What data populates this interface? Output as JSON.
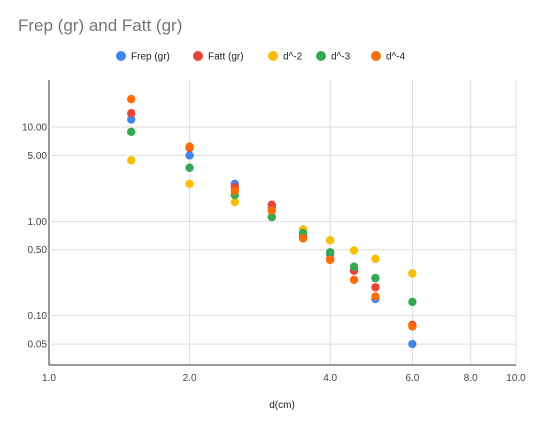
{
  "chart_data": {
    "type": "scatter",
    "title": "Frep (gr) and Fatt (gr)",
    "xlabel": "d(cm)",
    "ylabel": "",
    "x_scale": "log",
    "y_scale": "log",
    "xlim": [
      1.0,
      10.0
    ],
    "ylim": [
      0.03,
      30
    ],
    "x_ticks": [
      1.0,
      2.0,
      4.0,
      6.0,
      8.0,
      10.0
    ],
    "x_tick_labels": [
      "1.0",
      "2.0",
      "4.0",
      "6.0",
      "8.0",
      "10.0"
    ],
    "y_ticks": [
      0.05,
      0.1,
      0.5,
      1.0,
      5.0,
      10.0
    ],
    "y_tick_labels": [
      "0.05",
      "0.10",
      "0.50",
      "1.00",
      "5.00",
      "10.00"
    ],
    "grid": true,
    "legend_position": "top",
    "series": [
      {
        "name": "Frep (gr)",
        "color": "#4285F4",
        "x": [
          1.5,
          2.0,
          2.5,
          3.0,
          3.5,
          4.0,
          4.5,
          5.0,
          6.0
        ],
        "y": [
          12.0,
          5.0,
          2.5,
          1.4,
          0.72,
          0.45,
          0.3,
          0.15,
          0.05
        ]
      },
      {
        "name": "Fatt (gr)",
        "color": "#EA4335",
        "x": [
          1.5,
          2.0,
          2.5,
          3.0,
          3.5,
          4.0,
          4.5,
          5.0,
          6.0
        ],
        "y": [
          14.0,
          6.0,
          2.3,
          1.5,
          0.68,
          0.4,
          0.3,
          0.2,
          0.08
        ]
      },
      {
        "name": "d^-2",
        "color": "#FBBC04",
        "x": [
          1.5,
          2.0,
          2.5,
          3.0,
          3.5,
          4.0,
          4.5,
          5.0,
          6.0
        ],
        "y": [
          4.44,
          2.5,
          1.6,
          1.11,
          0.82,
          0.63,
          0.49,
          0.4,
          0.28
        ]
      },
      {
        "name": "d^-3",
        "color": "#34A853",
        "x": [
          1.5,
          2.0,
          2.5,
          3.0,
          3.5,
          4.0,
          4.5,
          5.0,
          6.0
        ],
        "y": [
          8.89,
          3.7,
          1.9,
          1.11,
          0.75,
          0.47,
          0.33,
          0.25,
          0.14
        ]
      },
      {
        "name": "d^-4",
        "color": "#FF6D01",
        "x": [
          1.5,
          2.0,
          2.5,
          3.0,
          3.5,
          4.0,
          4.5,
          5.0,
          6.0
        ],
        "y": [
          19.75,
          6.2,
          2.1,
          1.3,
          0.66,
          0.39,
          0.24,
          0.16,
          0.077
        ]
      }
    ]
  }
}
